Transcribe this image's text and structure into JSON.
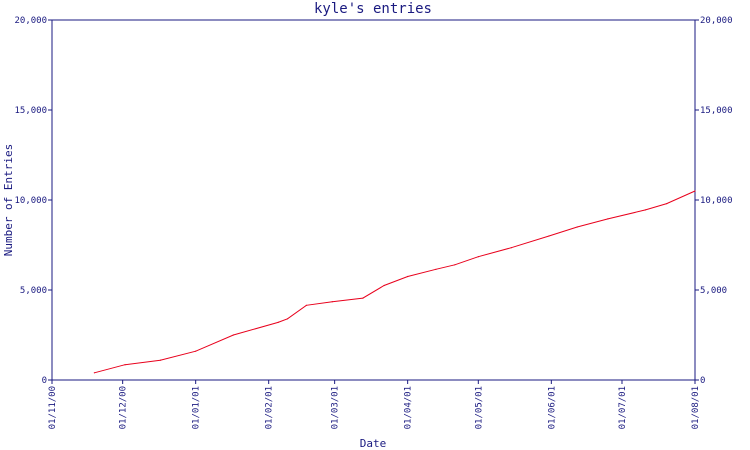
{
  "chart_data": {
    "type": "line",
    "title": "kyle's entries",
    "xlabel": "Date",
    "ylabel": "Number of Entries",
    "ylim": [
      0,
      20000
    ],
    "xlim": [
      "2000-11-01",
      "2001-08-01"
    ],
    "grid": false,
    "y_ticks": [
      "0",
      "5,000",
      "10,000",
      "15,000",
      "20,000"
    ],
    "x_ticks": [
      "01/11/00",
      "01/12/00",
      "01/01/01",
      "01/02/01",
      "01/03/01",
      "01/04/01",
      "01/05/01",
      "01/06/01",
      "01/07/01",
      "01/08/01"
    ],
    "colors": {
      "axis": "#1a1a80",
      "line": "#e8001c"
    },
    "series": [
      {
        "x": [
          "2000-11-19",
          "2000-12-02",
          "2000-12-17",
          "2001-01-01",
          "2001-01-17",
          "2001-02-05",
          "2001-02-09",
          "2001-02-17",
          "2001-02-28",
          "2001-03-13",
          "2001-03-22",
          "2001-04-01",
          "2001-04-13",
          "2001-04-21",
          "2001-05-01",
          "2001-05-15",
          "2001-05-31",
          "2001-06-12",
          "2001-06-25",
          "2001-07-11",
          "2001-07-20",
          "2001-08-01"
        ],
        "values": [
          400,
          850,
          1100,
          1600,
          2500,
          3200,
          3400,
          4150,
          4350,
          4550,
          5250,
          5750,
          6150,
          6400,
          6850,
          7350,
          8000,
          8500,
          8950,
          9450,
          9800,
          10500
        ]
      }
    ]
  }
}
